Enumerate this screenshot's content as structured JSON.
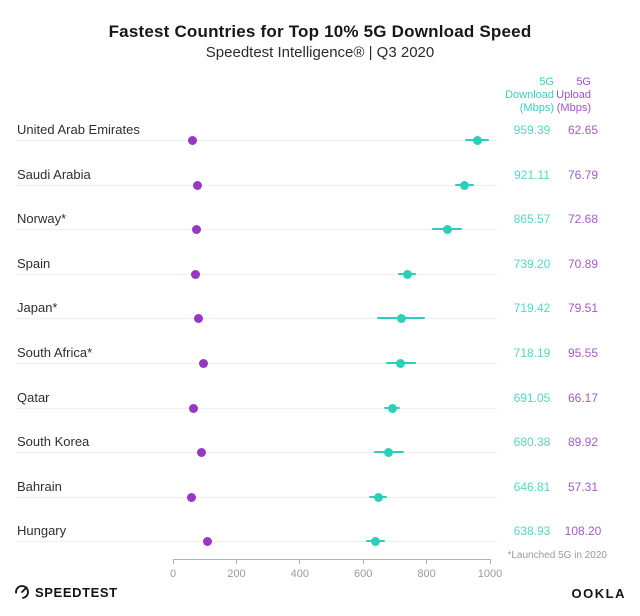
{
  "title": "Fastest Countries for Top 10% 5G Download Speed",
  "subtitle": "Speedtest Intelligence® | Q3 2020",
  "columns": {
    "download": {
      "lines": [
        "5G",
        "Download",
        "(Mbps)"
      ]
    },
    "upload": {
      "lines": [
        "5G",
        "Upload",
        "(Mbps)"
      ]
    }
  },
  "footnote": "*Launched 5G in 2020",
  "footer": {
    "left_logo": "SPEEDTEST",
    "right_logo": "OOKLA"
  },
  "colors": {
    "download_dot": "#2ccfba",
    "download_text": "#55d6c5",
    "download_header": "#3ad0be",
    "upload_dot": "#9838c2",
    "upload_text": "#a35cc5",
    "upload_header": "#a152c6",
    "row_line": "#efeef1",
    "axis": "#b3b3b3",
    "tick_label": "#9b9b9b"
  },
  "chart_data": {
    "type": "scatter",
    "subtype": "horizontal-dot-plot",
    "title": "Fastest Countries for Top 10% 5G Download Speed",
    "subtitle": "Speedtest Intelligence® | Q3 2020",
    "categories": [
      "United Arab Emirates",
      "Saudi Arabia",
      "Norway*",
      "Spain",
      "Japan*",
      "South Africa*",
      "Qatar",
      "South Korea",
      "Bahrain",
      "Hungary"
    ],
    "series": [
      {
        "name": "5G Download (Mbps)",
        "values": [
          959.39,
          921.11,
          865.57,
          739.2,
          719.42,
          718.19,
          691.05,
          680.38,
          646.81,
          638.93
        ],
        "display": [
          "959.39",
          "921.11",
          "865.57",
          "739.20",
          "719.42",
          "718.19",
          "691.05",
          "680.38",
          "646.81",
          "638.93"
        ],
        "ci_plus_minus": [
          38,
          30,
          47,
          28,
          75,
          47,
          25,
          47,
          27,
          30
        ]
      },
      {
        "name": "5G Upload (Mbps)",
        "values": [
          62.65,
          76.79,
          72.68,
          70.89,
          79.51,
          95.55,
          66.17,
          89.92,
          57.31,
          108.2
        ],
        "display": [
          "62.65",
          "76.79",
          "72.68",
          "70.89",
          "79.51",
          "95.55",
          "66.17",
          "89.92",
          "57.31",
          "108.20"
        ]
      }
    ],
    "x_axis": {
      "range": [
        0,
        1000
      ],
      "ticks": [
        0,
        200,
        400,
        600,
        800,
        1000
      ],
      "tick_labels": [
        "0",
        "200",
        "400",
        "600",
        "800",
        "1000"
      ]
    },
    "legend_position": "none",
    "grid": "per-row-baseline",
    "footnote": "*Launched 5G in 2020"
  }
}
